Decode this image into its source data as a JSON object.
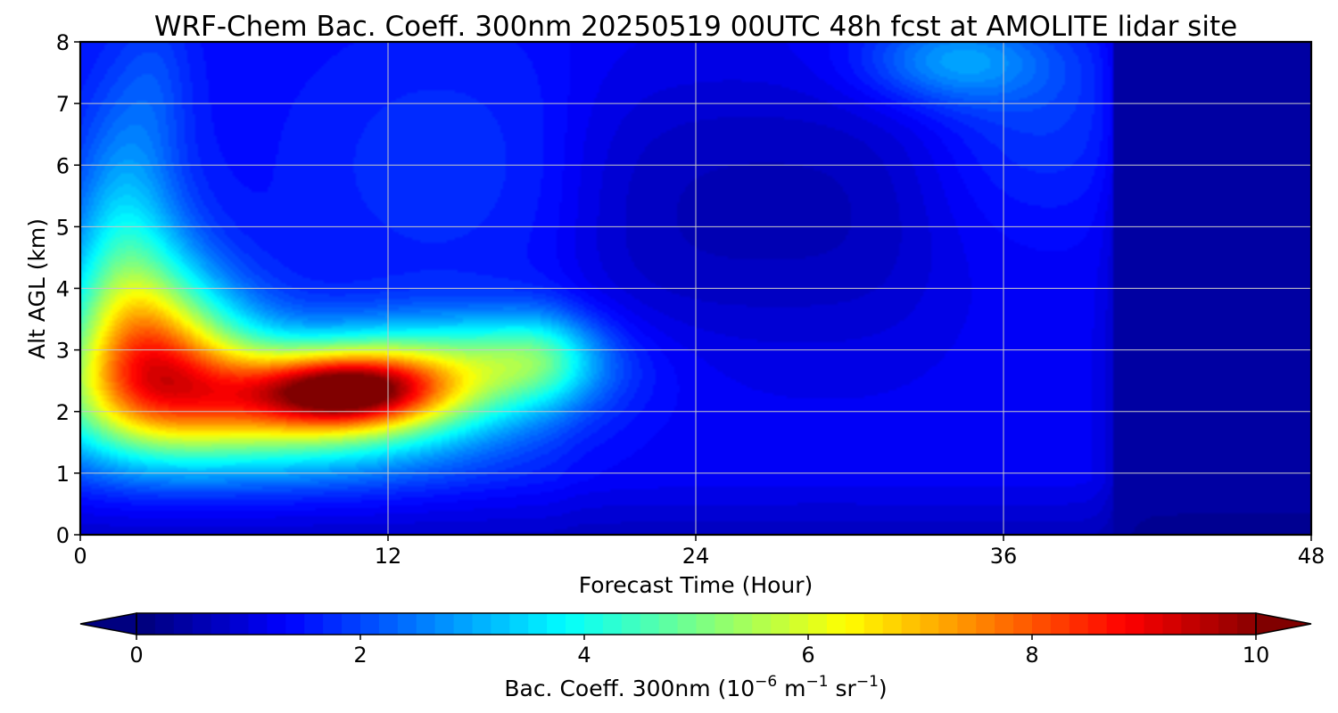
{
  "chart_data": {
    "type": "heatmap",
    "title": "WRF-Chem Bac. Coeff. 300nm  20250519 00UTC 48h fcst at AMOLITE lidar site",
    "xlabel": "Forecast Time (Hour)",
    "ylabel": "Alt AGL (km)",
    "xlim": [
      0,
      48
    ],
    "ylim": [
      0,
      8
    ],
    "xticks": [
      "0",
      "12",
      "24",
      "36",
      "48"
    ],
    "yticks": [
      "0",
      "1",
      "2",
      "3",
      "4",
      "5",
      "6",
      "7",
      "8"
    ],
    "grid": true,
    "colormap": "jet",
    "colorbar": {
      "label_main": "Bac. Coeff. 300nm  (10",
      "label_exp1": "−6",
      "label_mid": " m",
      "label_exp2": "−1",
      "label_mid2": " sr",
      "label_exp3": "−1",
      "label_end": ")",
      "range": [
        0,
        10
      ],
      "ticks": [
        "0",
        "2",
        "4",
        "6",
        "8",
        "10"
      ],
      "extend": "both"
    },
    "features": [
      {
        "x": 10.5,
        "y": 2.35,
        "sx": 2.6,
        "sy": 0.42,
        "v": 5.0
      },
      {
        "x": 7.5,
        "y": 2.1,
        "sx": 5.5,
        "sy": 0.7,
        "v": 5.0
      },
      {
        "x": 3.2,
        "y": 2.9,
        "sx": 2.5,
        "sy": 0.9,
        "v": 4.0
      },
      {
        "x": 2.0,
        "y": 3.8,
        "sx": 1.8,
        "sy": 1.2,
        "v": 2.4
      },
      {
        "x": 1.6,
        "y": 5.6,
        "sx": 1.3,
        "sy": 1.4,
        "v": 1.0
      },
      {
        "x": 15.0,
        "y": 2.8,
        "sx": 3.5,
        "sy": 0.55,
        "v": 2.5
      },
      {
        "x": 18.0,
        "y": 2.9,
        "sx": 1.6,
        "sy": 0.5,
        "v": 1.5
      },
      {
        "x": 34.0,
        "y": 7.7,
        "sx": 2.5,
        "sy": 0.5,
        "v": 1.5
      },
      {
        "x": 37.5,
        "y": 6.8,
        "sx": 3.0,
        "sy": 1.2,
        "v": 0.6
      },
      {
        "x": 14.0,
        "y": 6.0,
        "sx": 4.0,
        "sy": 1.5,
        "v": 0.4
      },
      {
        "x": 3.0,
        "y": 7.3,
        "sx": 1.0,
        "sy": 1.0,
        "v": 0.5
      }
    ],
    "background": [
      {
        "x0": 0,
        "x1": 19,
        "y0": 0.0,
        "y1": 8.0,
        "v": 1.3
      },
      {
        "x0": 19,
        "x1": 40.3,
        "y0": 0.0,
        "y1": 8.0,
        "v": 1.15
      },
      {
        "x0": 20,
        "x1": 33,
        "y0": 3.5,
        "y1": 7.0,
        "v": 0.45
      },
      {
        "x0": 40.3,
        "x1": 48,
        "y0": 0.0,
        "y1": 8.0,
        "v": 0.35
      }
    ]
  }
}
